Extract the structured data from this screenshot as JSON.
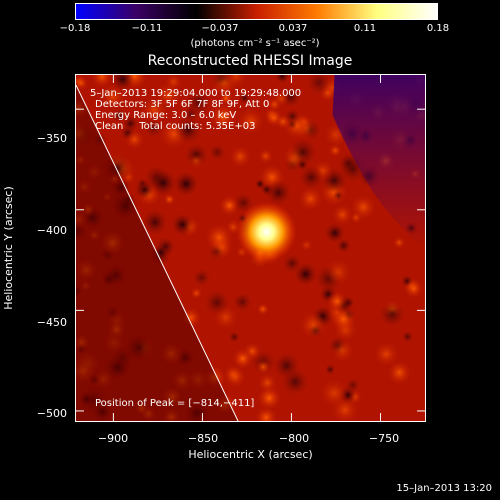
{
  "colorbar": {
    "ticks": [
      "−0.18",
      "−0.11",
      "−0.037",
      "0.037",
      "0.11",
      "0.18"
    ],
    "units": "(photons cm⁻² s⁻¹ asec⁻²)",
    "range": [
      -0.18,
      0.18
    ]
  },
  "title": "Reconstructed RHESSI Image",
  "annotations": {
    "time": "5–Jan–2013 19:29:04.000 to 19:29:48.000",
    "detectors": "Detectors: 3F 5F 6F 7F 8F 9F, Att 0",
    "energy": "Energy Range: 3.0 – 6.0 keV",
    "method": "Clean     Total counts: 5.35E+03",
    "peak": "Position of Peak = [−814,−411]"
  },
  "footer": "15–Jan–2013 13:20",
  "chart_data": {
    "type": "heatmap",
    "title": "Reconstructed RHESSI Image",
    "xlabel": "Heliocentric X (arcsec)",
    "ylabel": "Heliocentric Y (arcsec)",
    "xlim": [
      -921,
      -725
    ],
    "ylim": [
      -505,
      -333
    ],
    "xticks": [
      -900,
      -850,
      -800,
      -750
    ],
    "xtick_labels": [
      "−900",
      "−850",
      "−800",
      "−750"
    ],
    "yticks": [
      -350,
      -400,
      -450,
      -500
    ],
    "ytick_labels": [
      "−350",
      "−400",
      "−450",
      "−500"
    ],
    "peak": {
      "x": -814,
      "y": -411
    },
    "limb_line": [
      [
        -921,
        -338
      ],
      [
        -830,
        -505
      ]
    ],
    "colormap": [
      "#0000ff",
      "#3a0064",
      "#000000",
      "#c81e00",
      "#ff7a00",
      "#ffff80",
      "#ffffff"
    ]
  }
}
